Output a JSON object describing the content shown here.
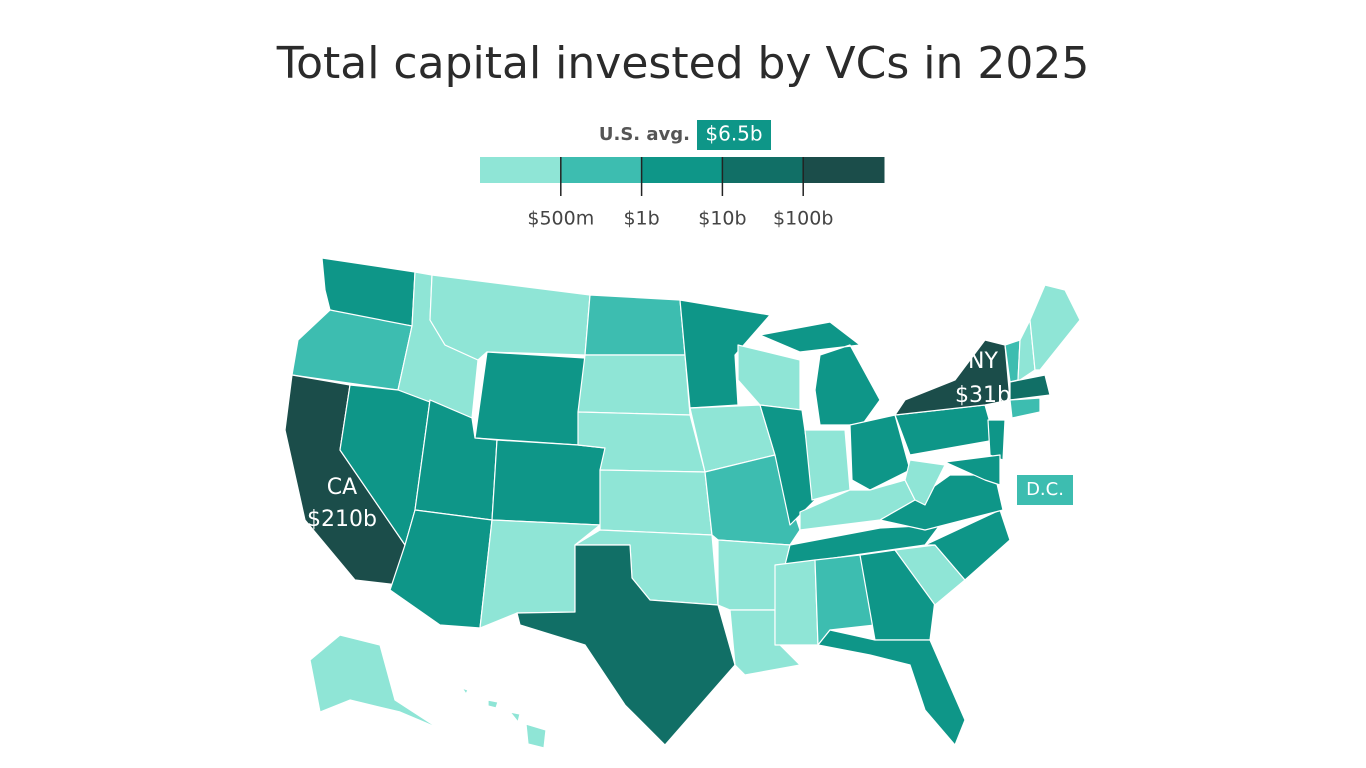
{
  "title": "Total capital invested by VCs in 2025",
  "legend": {
    "avg_label": "U.S. avg.",
    "avg_value": "$6.5b",
    "avg_color": "#0e9688",
    "colors": [
      "#8fe5d6",
      "#3dbdb0",
      "#0e9688",
      "#116f66",
      "#1b4d4a"
    ],
    "ticks": [
      "$500m",
      "$1b",
      "$10b",
      "$100b"
    ]
  },
  "regions": [
    {
      "color": "#0e9688"
    },
    {
      "color": "#3dbdb0"
    },
    {
      "color": "#1b4d4a"
    },
    {
      "color": "#8fe5d6"
    },
    {
      "color": "#0e9688"
    },
    {
      "color": "#8fe5d6"
    },
    {
      "color": "#0e9688"
    },
    {
      "color": "#0e9688"
    },
    {
      "color": "#0e9688"
    },
    {
      "color": "#0e9688"
    },
    {
      "color": "#8fe5d6"
    },
    {
      "color": "#3dbdb0"
    },
    {
      "color": "#8fe5d6"
    },
    {
      "color": "#8fe5d6"
    },
    {
      "color": "#8fe5d6"
    },
    {
      "color": "#8fe5d6"
    },
    {
      "color": "#116f66"
    },
    {
      "color": "#0e9688"
    },
    {
      "color": "#8fe5d6"
    },
    {
      "color": "#3dbdb0"
    },
    {
      "color": "#8fe5d6"
    },
    {
      "color": "#8fe5d6"
    },
    {
      "color": "#8fe5d6"
    },
    {
      "color": "#0e9688"
    },
    {
      "color": "#0e9688"
    },
    {
      "color": "#8fe5d6"
    },
    {
      "color": "#0e9688"
    },
    {
      "color": "#8fe5d6"
    },
    {
      "color": "#0e9688"
    },
    {
      "color": "#8fe5d6"
    },
    {
      "color": "#3dbdb0"
    },
    {
      "color": "#0e9688"
    },
    {
      "color": "#0e9688"
    },
    {
      "color": "#8fe5d6"
    },
    {
      "color": "#0e9688"
    },
    {
      "color": "#0e9688"
    },
    {
      "color": "#8fe5d6"
    },
    {
      "color": "#0e9688"
    },
    {
      "color": "#1b4d4a"
    },
    {
      "color": "#0e9688"
    },
    {
      "color": "#0e9688"
    },
    {
      "color": "#3dbdb0"
    },
    {
      "color": "#8fe5d6"
    },
    {
      "color": "#8fe5d6"
    },
    {
      "color": "#116f66"
    },
    {
      "color": "#3dbdb0"
    },
    {
      "color": "#8fe5d6"
    },
    {
      "color": "#8fe5d6"
    }
  ],
  "labels": [
    {
      "name": "CA",
      "value": "$210b"
    },
    {
      "name": "NY",
      "value": "$31b"
    }
  ],
  "dc": {
    "name": "D.C.",
    "color": "#3dbdb0"
  }
}
